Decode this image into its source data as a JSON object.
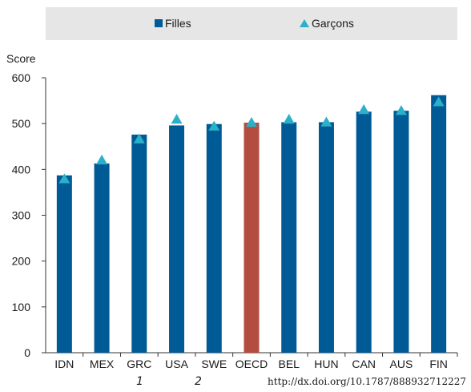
{
  "colors": {
    "filles": "#005a96",
    "garcons": "#2ab0c8",
    "oecd": "#b34d3f",
    "axis": "#333333"
  },
  "legend": {
    "filles": "Filles",
    "garcons": "Garçons"
  },
  "footnotes": {
    "note1": "1",
    "note2": "2",
    "source": "http://dx.doi.org/10.1787/888932712227"
  },
  "chart_data": {
    "type": "bar",
    "ylabel": "Score",
    "xlabel": "",
    "ylim": [
      0,
      600
    ],
    "yticks": [
      0,
      100,
      200,
      300,
      400,
      500,
      600
    ],
    "categories": [
      "IDN",
      "MEX",
      "GRC",
      "USA",
      "SWE",
      "OECD",
      "BEL",
      "HUN",
      "CAN",
      "AUS",
      "FIN"
    ],
    "series": [
      {
        "name": "Filles",
        "kind": "bar",
        "values": [
          387,
          413,
          476,
          496,
          499,
          502,
          503,
          503,
          526,
          528,
          562
        ]
      },
      {
        "name": "Garçons",
        "kind": "marker",
        "values": [
          379,
          420,
          466,
          509,
          494,
          502,
          509,
          503,
          530,
          528,
          547
        ]
      }
    ],
    "highlight": "OECD",
    "grid": false,
    "legend_position": "top"
  }
}
